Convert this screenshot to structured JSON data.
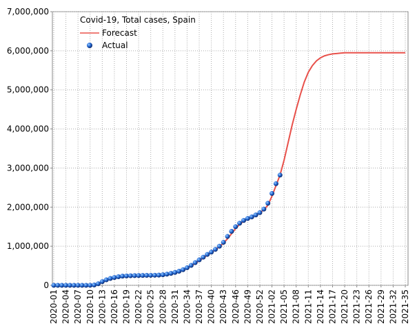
{
  "chart_data": {
    "type": "line",
    "title": "Covid-19, Total cases, Spain",
    "categories": [
      "2020-01",
      null,
      null,
      "2020-04",
      null,
      null,
      "2020-07",
      null,
      null,
      "2020-10",
      null,
      null,
      "2020-13",
      null,
      null,
      "2020-16",
      null,
      null,
      "2020-19",
      null,
      null,
      "2020-22",
      null,
      null,
      "2020-25",
      null,
      null,
      "2020-28",
      null,
      null,
      "2020-31",
      null,
      null,
      "2020-34",
      null,
      null,
      "2020-37",
      null,
      null,
      "2020-40",
      null,
      null,
      "2020-43",
      null,
      null,
      "2020-46",
      null,
      null,
      "2020-49",
      null,
      null,
      "2020-52",
      null,
      null,
      "2021-02",
      null,
      null,
      "2021-05",
      null,
      null,
      "2021-08",
      null,
      null,
      "2021-11",
      null,
      null,
      "2021-14",
      null,
      null,
      "2021-17",
      null,
      null,
      "2021-20",
      null,
      null,
      "2021-23",
      null,
      null,
      "2021-26",
      null,
      null,
      "2021-29",
      null,
      null,
      "2021-32",
      null,
      null,
      "2021-35"
    ],
    "series": [
      {
        "name": "Forecast",
        "color": "#e8504a",
        "values": [
          0,
          0,
          0,
          0,
          0,
          0,
          0,
          0,
          0,
          500,
          5000,
          30000,
          80000,
          130000,
          165000,
          190000,
          210000,
          222000,
          230000,
          236000,
          240000,
          243000,
          246000,
          248000,
          250000,
          253000,
          257000,
          264000,
          276000,
          292000,
          315000,
          345000,
          385000,
          435000,
          495000,
          560000,
          630000,
          700000,
          770000,
          840000,
          910000,
          990000,
          1080000,
          1190000,
          1320000,
          1450000,
          1560000,
          1640000,
          1700000,
          1750000,
          1800000,
          1860000,
          1930000,
          2050000,
          2280000,
          2550000,
          2820000,
          3200000,
          3650000,
          4100000,
          4500000,
          4870000,
          5200000,
          5450000,
          5620000,
          5740000,
          5820000,
          5870000,
          5900000,
          5920000,
          5930000,
          5940000,
          5950000,
          5950000,
          5950000,
          5950000,
          5950000,
          5950000,
          5950000,
          5950000,
          5950000,
          5950000,
          5950000,
          5950000,
          5950000,
          5950000,
          5950000,
          5950000
        ]
      },
      {
        "name": "Actual",
        "color": "#1e5fd0",
        "values": [
          0,
          0,
          0,
          0,
          0,
          0,
          0,
          0,
          100,
          1000,
          8000,
          40000,
          95000,
          140000,
          175000,
          200000,
          220000,
          235000,
          240000,
          245000,
          248000,
          250000,
          252000,
          254000,
          256000,
          258000,
          262000,
          270000,
          285000,
          305000,
          330000,
          360000,
          400000,
          450000,
          510000,
          580000,
          650000,
          720000,
          790000,
          850000,
          920000,
          1000000,
          1100000,
          1250000,
          1380000,
          1500000,
          1590000,
          1660000,
          1710000,
          1750000,
          1800000,
          1860000,
          1950000,
          2100000,
          2350000,
          2600000,
          2820000,
          null,
          null,
          null,
          null,
          null,
          null,
          null,
          null,
          null,
          null,
          null,
          null,
          null,
          null,
          null,
          null,
          null,
          null,
          null,
          null,
          null,
          null,
          null,
          null,
          null,
          null,
          null,
          null,
          null,
          null,
          null
        ]
      }
    ],
    "ylim": [
      0,
      7000000
    ],
    "yticks": [
      0,
      {
        "value": 1000000,
        "label": "1,000,000"
      },
      {
        "value": 2000000,
        "label": "2,000,000"
      },
      {
        "value": 3000000,
        "label": "3,000,000"
      },
      {
        "value": 4000000,
        "label": "4,000,000"
      },
      {
        "value": 5000000,
        "label": "5,000,000"
      },
      {
        "value": 6000000,
        "label": "6,000,000"
      },
      {
        "value": 7000000,
        "label": "7,000,000"
      }
    ],
    "grid": true,
    "legend": "upper left"
  }
}
